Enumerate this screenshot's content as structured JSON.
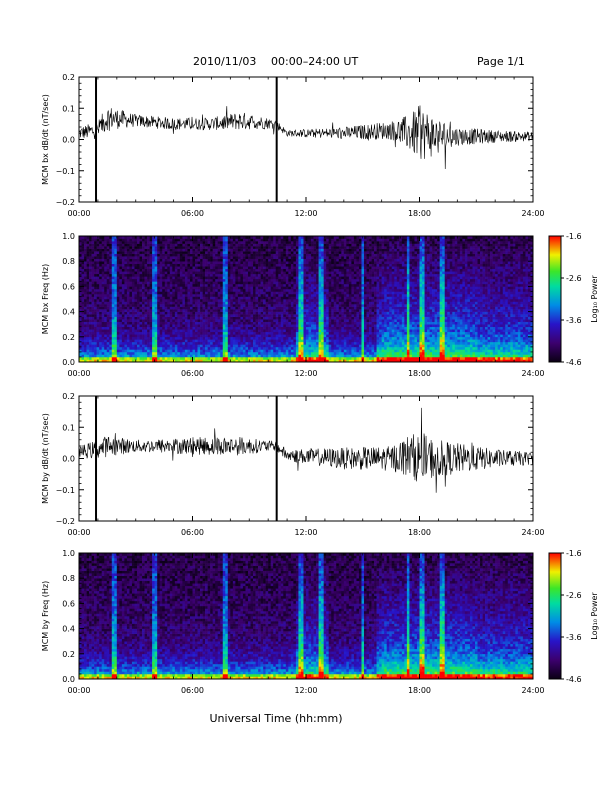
{
  "header": {
    "date": "2010/11/03",
    "range": "00:00–24:00 UT",
    "page": "Page 1/1"
  },
  "xlabel": "Universal Time (hh:mm)",
  "chart_data": [
    {
      "type": "line",
      "ylabel": "MCM bx dB/dt (nT/sec)",
      "x_range": [
        "00:00",
        "24:00"
      ],
      "xticks": [
        "00:00",
        "06:00",
        "12:00",
        "18:00",
        "24:00"
      ],
      "ylim": [
        -0.2,
        0.2
      ],
      "yticks": [
        "0.2",
        "0.1",
        "0.0",
        "−0.1",
        "−0.2"
      ],
      "gaps_hours": [
        0.9,
        10.45
      ],
      "envelope": {
        "hours": [
          0.0,
          1.0,
          1.5,
          3.0,
          5.0,
          7.0,
          8.5,
          10.4,
          11.0,
          14.0,
          16.5,
          17.5,
          18.0,
          19.0,
          20.0,
          22.0,
          24.0
        ],
        "mean": [
          0.02,
          0.03,
          0.07,
          0.06,
          0.05,
          0.05,
          0.06,
          0.05,
          0.02,
          0.02,
          0.03,
          0.02,
          0.02,
          0.01,
          0.01,
          0.01,
          0.01
        ],
        "amplitude": [
          0.02,
          0.03,
          0.04,
          0.02,
          0.02,
          0.02,
          0.03,
          0.015,
          0.01,
          0.02,
          0.03,
          0.06,
          0.09,
          0.06,
          0.03,
          0.02,
          0.015
        ]
      }
    },
    {
      "type": "heatmap",
      "ylabel": "MCM bx Freq (Hz)",
      "ylim": [
        0.0,
        1.0
      ],
      "yticks": [
        "1.0",
        "0.8",
        "0.6",
        "0.4",
        "0.2",
        "0.0"
      ],
      "xticks": [
        "00:00",
        "06:00",
        "12:00",
        "18:00",
        "24:00"
      ],
      "colorbar": {
        "label": "Log₁₀ Power",
        "ticks": [
          "-1.6",
          "-2.6",
          "-3.6",
          "-4.6"
        ],
        "range": [
          -4.6,
          -1.6
        ]
      },
      "active_intervals_hours": [
        [
          11.5,
          13.2
        ],
        [
          15.8,
          24.0
        ]
      ],
      "bright_streaks_hours": [
        1.9,
        4.0,
        7.7,
        11.7,
        12.8,
        15.0,
        17.4,
        18.1,
        19.2
      ]
    },
    {
      "type": "line",
      "ylabel": "MCM by dB/dt (nT/sec)",
      "x_range": [
        "00:00",
        "24:00"
      ],
      "xticks": [
        "00:00",
        "06:00",
        "12:00",
        "18:00",
        "24:00"
      ],
      "ylim": [
        -0.2,
        0.2
      ],
      "yticks": [
        "0.2",
        "0.1",
        "0.0",
        "−0.1",
        "−0.2"
      ],
      "gaps_hours": [
        0.9,
        10.45
      ],
      "envelope": {
        "hours": [
          0.0,
          1.0,
          1.5,
          3.0,
          5.0,
          7.0,
          8.5,
          10.4,
          11.0,
          14.0,
          16.5,
          17.5,
          18.0,
          19.0,
          20.0,
          22.0,
          24.0
        ],
        "mean": [
          0.02,
          0.03,
          0.04,
          0.04,
          0.04,
          0.04,
          0.04,
          0.04,
          0.01,
          0.0,
          0.0,
          0.01,
          0.0,
          0.0,
          0.0,
          0.0,
          0.0
        ],
        "amplitude": [
          0.02,
          0.03,
          0.035,
          0.02,
          0.025,
          0.03,
          0.03,
          0.015,
          0.02,
          0.035,
          0.04,
          0.07,
          0.08,
          0.06,
          0.05,
          0.03,
          0.02
        ]
      }
    },
    {
      "type": "heatmap",
      "ylabel": "MCM by Freq (Hz)",
      "ylim": [
        0.0,
        1.0
      ],
      "yticks": [
        "1.0",
        "0.8",
        "0.6",
        "0.4",
        "0.2",
        "0.0"
      ],
      "xticks": [
        "00:00",
        "06:00",
        "12:00",
        "18:00",
        "24:00"
      ],
      "colorbar": {
        "label": "Log₁₀ Power",
        "ticks": [
          "-1.6",
          "-2.6",
          "-3.6",
          "-4.6"
        ],
        "range": [
          -4.6,
          -1.6
        ]
      },
      "active_intervals_hours": [
        [
          11.5,
          13.2
        ],
        [
          15.8,
          24.0
        ]
      ],
      "bright_streaks_hours": [
        1.9,
        4.0,
        7.7,
        11.7,
        12.8,
        15.0,
        17.4,
        18.1,
        19.2
      ]
    }
  ]
}
